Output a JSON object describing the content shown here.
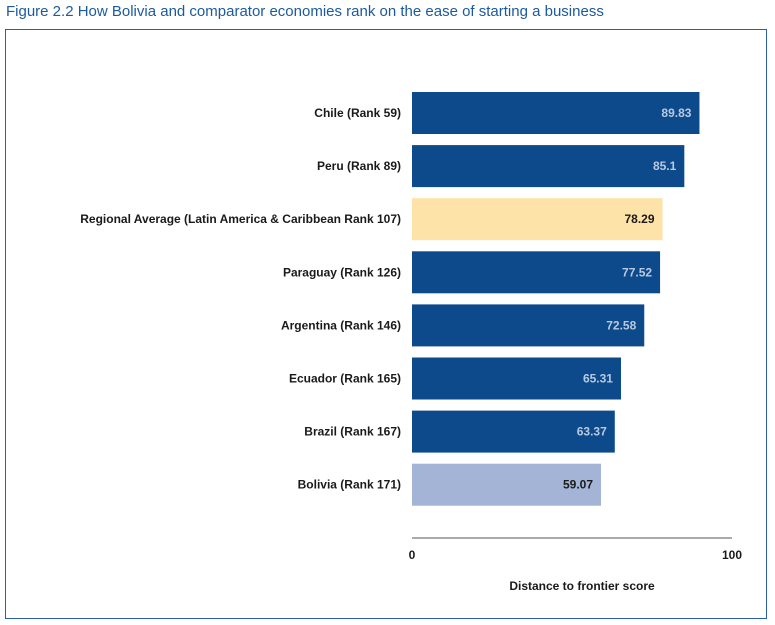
{
  "figure_title": "Figure 2.2 How Bolivia and comparator economies rank on the ease of starting a business",
  "colors": {
    "frame": "#2b5fa6",
    "title": "#1b5a9e",
    "bar_default": "#0d4a8b",
    "bar_regional": "#fde3a7",
    "bar_bolivia": "#a3b4d6",
    "label_on_dark": "#b9c9e0",
    "label_on_light": "#1a1a1a"
  },
  "chart_data": {
    "type": "bar",
    "orientation": "horizontal",
    "title": "",
    "xlabel": "Distance to frontier score",
    "ylabel": "",
    "xlim": [
      0,
      100
    ],
    "xticks": [
      "0",
      "100"
    ],
    "grid": false,
    "categories": [
      "Chile (Rank 59)",
      "Peru (Rank 89)",
      "Regional Average (Latin America & Caribbean Rank 107)",
      "Paraguay (Rank 126)",
      "Argentina (Rank 146)",
      "Ecuador (Rank 165)",
      "Brazil (Rank 167)",
      "Bolivia (Rank 171)"
    ],
    "values": [
      89.83,
      85.1,
      78.29,
      77.52,
      72.58,
      65.31,
      63.37,
      59.07
    ],
    "value_labels": [
      "89.83",
      "85.1",
      "78.29",
      "77.52",
      "72.58",
      "65.31",
      "63.37",
      "59.07"
    ],
    "bar_styles": [
      "default",
      "default",
      "regional",
      "default",
      "default",
      "default",
      "default",
      "bolivia"
    ]
  }
}
